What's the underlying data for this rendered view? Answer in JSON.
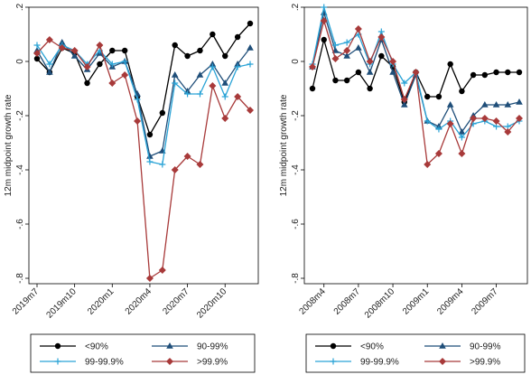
{
  "chart_data": [
    {
      "type": "line",
      "title": "",
      "xlabel": "",
      "ylabel": "12m midpoint growth rate",
      "ylim": [
        -0.82,
        0.2
      ],
      "yticks": [
        0.2,
        0,
        -0.2,
        -0.4,
        -0.6,
        -0.8
      ],
      "ytick_labels": [
        ".2",
        "0",
        "-.2",
        "-.4",
        "-.6",
        "-.8"
      ],
      "x": [
        "2019m7",
        "2019m8",
        "2019m9",
        "2019m10",
        "2019m11",
        "2019m12",
        "2020m1",
        "2020m2",
        "2020m3",
        "2020m4",
        "2020m5",
        "2020m6",
        "2020m7",
        "2020m8",
        "2020m9",
        "2020m10",
        "2020m11",
        "2020m12"
      ],
      "xtick_labels": [
        "2019m7",
        "2019m10",
        "2020m1",
        "2020m4",
        "2020m7",
        "2020m10"
      ],
      "grid": false,
      "legend": "bottom",
      "series": [
        {
          "name": "<90%",
          "color": "#000000",
          "marker": "circle",
          "values": [
            0.01,
            -0.04,
            0.05,
            0.03,
            -0.08,
            -0.01,
            0.04,
            0.04,
            -0.13,
            -0.27,
            -0.19,
            0.06,
            0.02,
            0.04,
            0.1,
            0.02,
            0.09,
            0.14
          ]
        },
        {
          "name": "90-99%",
          "color": "#1f4e79",
          "marker": "triangle",
          "values": [
            0.04,
            -0.04,
            0.07,
            0.02,
            -0.03,
            0.03,
            -0.02,
            0.0,
            -0.12,
            -0.35,
            -0.33,
            -0.05,
            -0.11,
            -0.05,
            -0.01,
            -0.08,
            -0.01,
            0.05
          ]
        },
        {
          "name": "99-99.9%",
          "color": "#2aa3d6",
          "marker": "plus",
          "values": [
            0.06,
            -0.01,
            0.06,
            0.04,
            -0.01,
            0.04,
            -0.01,
            0.0,
            -0.14,
            -0.37,
            -0.38,
            -0.08,
            -0.12,
            -0.12,
            -0.02,
            -0.13,
            -0.02,
            -0.01
          ]
        },
        {
          "name": ">99.9%",
          "color": "#a83a3a",
          "marker": "diamond",
          "values": [
            0.03,
            0.08,
            0.05,
            0.04,
            -0.02,
            0.06,
            -0.08,
            -0.05,
            -0.22,
            -0.8,
            -0.77,
            -0.4,
            -0.35,
            -0.38,
            -0.09,
            -0.21,
            -0.13,
            -0.18
          ]
        }
      ]
    },
    {
      "type": "line",
      "title": "",
      "xlabel": "",
      "ylabel": "12m midpoint growth rate",
      "ylim": [
        -0.82,
        0.2
      ],
      "yticks": [
        0.2,
        0,
        -0.2,
        -0.4,
        -0.6,
        -0.8
      ],
      "ytick_labels": [
        ".2",
        "0",
        "-.2",
        "-.4",
        "-.6",
        "-.8"
      ],
      "x": [
        "2008m3",
        "2008m4",
        "2008m5",
        "2008m6",
        "2008m7",
        "2008m8",
        "2008m9",
        "2008m10",
        "2008m11",
        "2008m12",
        "2009m1",
        "2009m2",
        "2009m3",
        "2009m4",
        "2009m5",
        "2009m6",
        "2009m7",
        "2009m8",
        "2009m9"
      ],
      "xtick_labels": [
        "2008m4",
        "2008m7",
        "2008m10",
        "2009m1",
        "2009m4",
        "2009m7"
      ],
      "grid": false,
      "legend": "bottom",
      "series": [
        {
          "name": "<90%",
          "color": "#000000",
          "marker": "circle",
          "values": [
            -0.1,
            0.08,
            -0.07,
            -0.07,
            -0.04,
            -0.1,
            0.02,
            -0.02,
            -0.15,
            -0.04,
            -0.13,
            -0.13,
            -0.01,
            -0.11,
            -0.05,
            -0.05,
            -0.04,
            -0.04,
            -0.04
          ]
        },
        {
          "name": "90-99%",
          "color": "#1f4e79",
          "marker": "triangle",
          "values": [
            -0.02,
            0.18,
            0.04,
            0.02,
            0.05,
            -0.04,
            0.08,
            -0.04,
            -0.16,
            -0.05,
            -0.22,
            -0.24,
            -0.16,
            -0.26,
            -0.2,
            -0.16,
            -0.16,
            -0.16,
            -0.15
          ]
        },
        {
          "name": "99-99.9%",
          "color": "#2aa3d6",
          "marker": "plus",
          "values": [
            -0.01,
            0.2,
            0.06,
            0.07,
            0.1,
            -0.01,
            0.11,
            -0.01,
            -0.08,
            -0.04,
            -0.22,
            -0.25,
            -0.22,
            -0.28,
            -0.23,
            -0.22,
            -0.24,
            -0.24,
            -0.22
          ]
        },
        {
          "name": ">99.9%",
          "color": "#a83a3a",
          "marker": "diamond",
          "values": [
            -0.02,
            0.15,
            0.01,
            0.04,
            0.12,
            0.0,
            0.09,
            0.0,
            -0.14,
            -0.04,
            -0.38,
            -0.34,
            -0.23,
            -0.34,
            -0.21,
            -0.21,
            -0.22,
            -0.26,
            -0.21
          ]
        }
      ]
    }
  ]
}
